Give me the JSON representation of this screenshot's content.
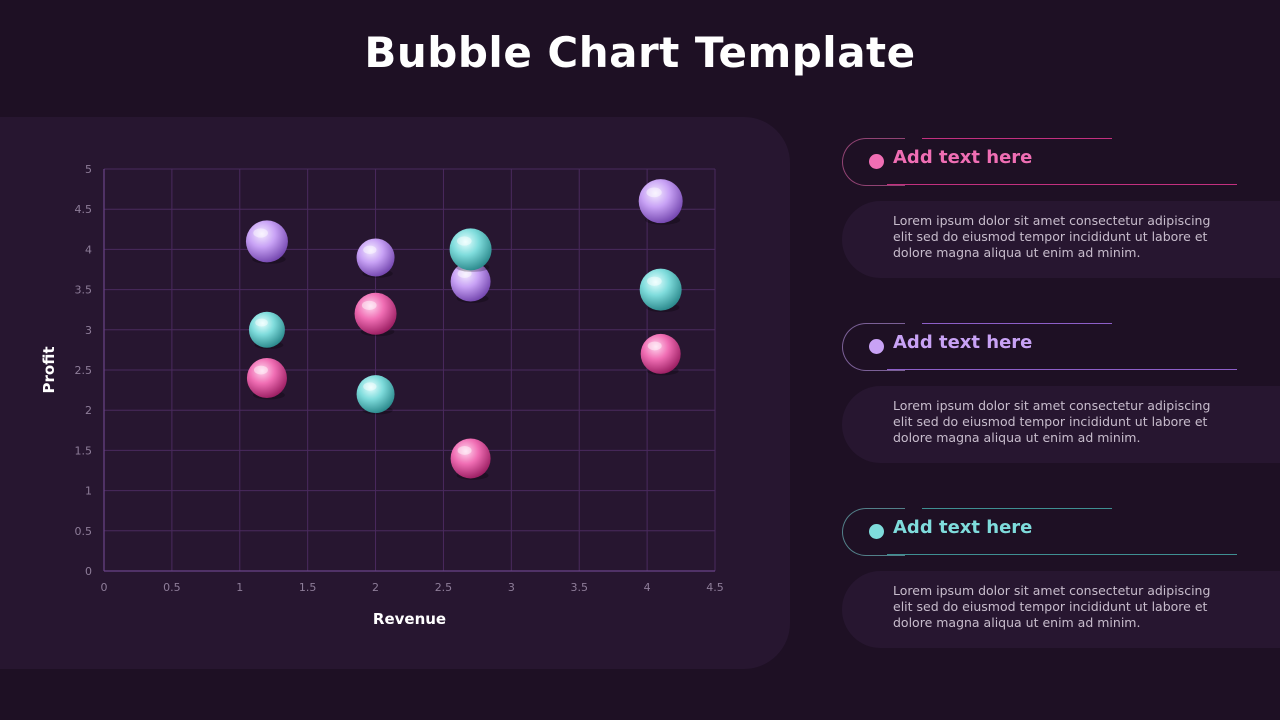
{
  "title": "Bubble Chart Template",
  "colors": {
    "background": "#1e1024",
    "panel": "#271630",
    "pink": "#f06eb4",
    "purple": "#c8a2f5",
    "teal": "#7fdcdc",
    "grid": "#4a2a5e"
  },
  "chart_data": {
    "type": "scatter",
    "xlabel": "Revenue",
    "ylabel": "Profit",
    "xlim": [
      0,
      4.5
    ],
    "ylim": [
      0,
      5
    ],
    "x_ticks": [
      "0",
      "0.5",
      "1",
      "1.5",
      "2",
      "2.5",
      "3",
      "3.5",
      "4",
      "4.5"
    ],
    "y_ticks": [
      "0",
      "0.5",
      "1",
      "1.5",
      "2",
      "2.5",
      "3",
      "3.5",
      "4",
      "4.5",
      "5"
    ],
    "grid": true,
    "series": [
      {
        "color": "pink",
        "points": [
          {
            "x": 1.2,
            "y": 2.4,
            "size": 1.0
          },
          {
            "x": 2.0,
            "y": 3.2,
            "size": 1.05
          },
          {
            "x": 2.7,
            "y": 1.4,
            "size": 1.0
          },
          {
            "x": 4.1,
            "y": 2.7,
            "size": 1.0
          }
        ]
      },
      {
        "color": "purple",
        "points": [
          {
            "x": 1.2,
            "y": 4.1,
            "size": 1.05
          },
          {
            "x": 2.0,
            "y": 3.9,
            "size": 0.95
          },
          {
            "x": 2.7,
            "y": 3.6,
            "size": 1.0
          },
          {
            "x": 4.1,
            "y": 4.6,
            "size": 1.1
          }
        ]
      },
      {
        "color": "teal",
        "points": [
          {
            "x": 1.2,
            "y": 3.0,
            "size": 0.9
          },
          {
            "x": 2.0,
            "y": 2.2,
            "size": 0.95
          },
          {
            "x": 2.7,
            "y": 4.0,
            "size": 1.05
          },
          {
            "x": 4.1,
            "y": 3.5,
            "size": 1.05
          }
        ]
      }
    ]
  },
  "entries": [
    {
      "heading": "Add text here",
      "description": "Lorem ipsum dolor sit amet consectetur adipiscing elit sed do eiusmod tempor incididunt ut labore et dolore magna aliqua ut enim ad minim."
    },
    {
      "heading": "Add text here",
      "description": "Lorem ipsum dolor sit amet consectetur adipiscing elit sed do eiusmod tempor incididunt ut labore et dolore magna aliqua ut enim ad minim."
    },
    {
      "heading": "Add text here",
      "description": "Lorem ipsum dolor sit amet consectetur adipiscing elit sed do eiusmod tempor incididunt ut labore et dolore magna aliqua ut enim ad minim."
    }
  ]
}
